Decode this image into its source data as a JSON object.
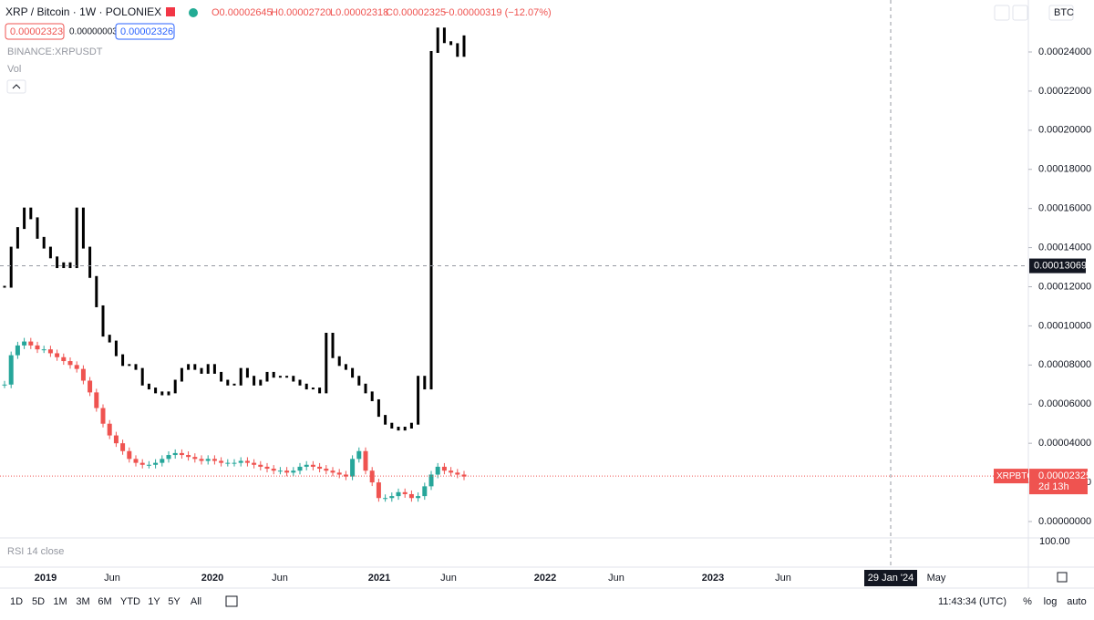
{
  "header": {
    "symbol": "XRP / Bitcoin · 1W · POLONIEX",
    "open": "O0.00002645",
    "high": "H0.00002720",
    "low": "L0.00002318",
    "close": "C0.00002325",
    "change": "−0.00000319 (−12.07%)",
    "bid": "0.00002323",
    "spread": "0.00000003",
    "ask": "0.00002326",
    "overlay": "BINANCE:XRPUSDT",
    "volume": "Vol",
    "currency": "BTC"
  },
  "chart_data": {
    "type": "candlestick",
    "ylim": [
      0,
      0.00026
    ],
    "yticks": [
      {
        "value": 0,
        "label": "0.00000000"
      },
      {
        "value": 2e-05,
        "label": "0.00002000"
      },
      {
        "value": 4e-05,
        "label": "0.00004000"
      },
      {
        "value": 6e-05,
        "label": "0.00006000"
      },
      {
        "value": 8e-05,
        "label": "0.00008000"
      },
      {
        "value": 0.0001,
        "label": "0.00010000"
      },
      {
        "value": 0.00012,
        "label": "0.00012000"
      },
      {
        "value": 0.00014,
        "label": "0.00014000"
      },
      {
        "value": 0.00016,
        "label": "0.00016000"
      },
      {
        "value": 0.00018,
        "label": "0.00018000"
      },
      {
        "value": 0.0002,
        "label": "0.00020000"
      },
      {
        "value": 0.00022,
        "label": "0.00022000"
      },
      {
        "value": 0.00024,
        "label": "0.00024000"
      }
    ],
    "x_labels": [
      "2019",
      "Jun",
      "2020",
      "Jun",
      "2021",
      "Jun",
      "2022",
      "Jun",
      "2023",
      "Jun",
      "29 Jan '24",
      "May"
    ],
    "crosshair": {
      "value": 0.00013069,
      "label": "0.00013069"
    },
    "last_price": {
      "name": "XRPBTC",
      "value": 2.325e-05,
      "label": "0.00002325",
      "countdown": "2d 13h"
    },
    "series": [
      {
        "name": "BINANCE:XRPUSDT",
        "color": "#000000",
        "values": [
          0.00012,
          0.00014,
          0.00015,
          0.00016,
          0.000155,
          0.000145,
          0.00014,
          0.000135,
          0.00013,
          0.000132,
          0.00013,
          0.00016,
          0.00014,
          0.000125,
          0.00011,
          9.5e-05,
          9.2e-05,
          8.5e-05,
          8e-05,
          8e-05,
          7.8e-05,
          7e-05,
          6.8e-05,
          6.6e-05,
          6.5e-05,
          6.6e-05,
          7.2e-05,
          7.8e-05,
          8e-05,
          7.8e-05,
          7.6e-05,
          8e-05,
          7.6e-05,
          7.2e-05,
          7e-05,
          7e-05,
          7.8e-05,
          7.4e-05,
          7e-05,
          7.2e-05,
          7.6e-05,
          7.4e-05,
          7.4e-05,
          7.4e-05,
          7.2e-05,
          7e-05,
          6.8e-05,
          6.8e-05,
          6.6e-05,
          9.6e-05,
          8.4e-05,
          8e-05,
          7.8e-05,
          7.4e-05,
          7e-05,
          6.6e-05,
          6.2e-05,
          5.4e-05,
          5e-05,
          4.8e-05,
          4.7e-05,
          4.8e-05,
          5e-05,
          7.4e-05,
          6.8e-05,
          0.00024,
          0.000252,
          0.000245,
          0.000244,
          0.000238,
          0.000248
        ]
      },
      {
        "name": "XRPBTC",
        "color": "#ef5350",
        "up_color": "#26a69a",
        "values": [
          7e-05,
          8.5e-05,
          9e-05,
          9.2e-05,
          9e-05,
          8.8e-05,
          8.8e-05,
          8.6e-05,
          8.4e-05,
          8.2e-05,
          8e-05,
          7.8e-05,
          7.2e-05,
          6.6e-05,
          5.8e-05,
          5e-05,
          4.4e-05,
          4e-05,
          3.6e-05,
          3.2e-05,
          3e-05,
          2.9e-05,
          2.9e-05,
          3e-05,
          3.2e-05,
          3.4e-05,
          3.5e-05,
          3.4e-05,
          3.3e-05,
          3.2e-05,
          3.1e-05,
          3.2e-05,
          3.1e-05,
          3e-05,
          3e-05,
          3e-05,
          3.1e-05,
          3e-05,
          2.9e-05,
          2.8e-05,
          2.7e-05,
          2.6e-05,
          2.6e-05,
          2.5e-05,
          2.6e-05,
          2.8e-05,
          2.9e-05,
          2.8e-05,
          2.7e-05,
          2.6e-05,
          2.5e-05,
          2.4e-05,
          2.3e-05,
          3.2e-05,
          3.6e-05,
          2.6e-05,
          2e-05,
          1.2e-05,
          1.2e-05,
          1.3e-05,
          1.5e-05,
          1.4e-05,
          1.2e-05,
          1.3e-05,
          1.8e-05,
          2.4e-05,
          2.8e-05,
          2.6e-05,
          2.5e-05,
          2.4e-05,
          2.3e-05
        ]
      }
    ]
  },
  "rsi": {
    "label": "RSI 14 close",
    "tick": "100.00"
  },
  "toolbar": {
    "ranges": [
      "1D",
      "5D",
      "1M",
      "3M",
      "6M",
      "YTD",
      "1Y",
      "5Y",
      "All"
    ],
    "time": "11:43:34 (UTC)",
    "options": [
      "%",
      "log",
      "auto"
    ]
  }
}
